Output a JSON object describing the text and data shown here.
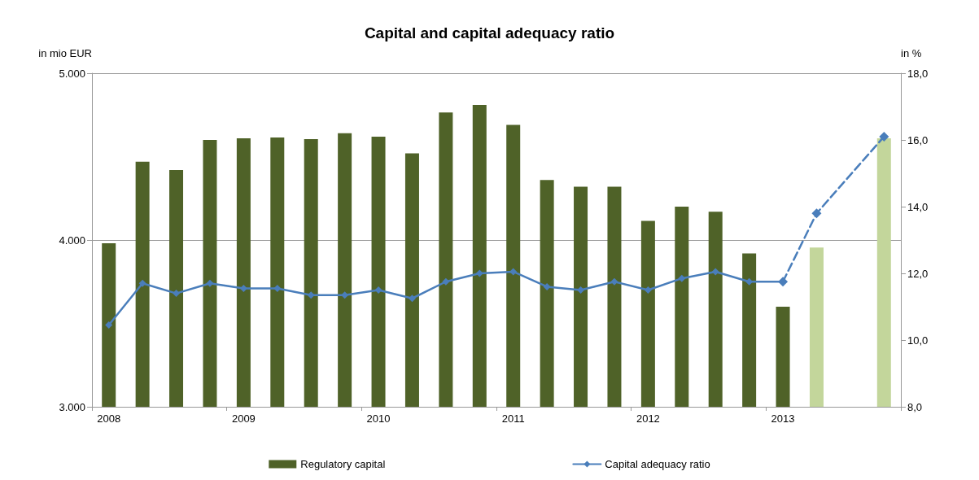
{
  "chart_data": {
    "type": "bar",
    "title": "Capital and capital adequacy ratio",
    "ylabel": "in mio EUR",
    "y2label": "in %",
    "categories": [
      "2008",
      null,
      null,
      null,
      "2009",
      null,
      null,
      null,
      "2010",
      null,
      null,
      null,
      "2011",
      null,
      null,
      null,
      "2012",
      null,
      null,
      null,
      "2013",
      null,
      null,
      null
    ],
    "series": [
      {
        "name": "Regulatory capital",
        "color": "#4f6228",
        "colors": [
          "#4f6228",
          "#4f6228",
          "#4f6228",
          "#4f6228",
          "#4f6228",
          "#4f6228",
          "#4f6228",
          "#4f6228",
          "#4f6228",
          "#4f6228",
          "#4f6228",
          "#4f6228",
          "#4f6228",
          "#4f6228",
          "#4f6228",
          "#4f6228",
          "#4f6228",
          "#4f6228",
          "#4f6228",
          "#4f6228",
          "#4f6228",
          "#c3d69b",
          "#c3d69b",
          "#c3d69b"
        ],
        "values": [
          3980,
          4470,
          4420,
          4600,
          4610,
          4615,
          4605,
          4640,
          4620,
          4520,
          4765,
          4810,
          4690,
          4360,
          4320,
          4320,
          4115,
          4200,
          4170,
          3920,
          3600,
          3955,
          null,
          4610
        ]
      },
      {
        "name": "Capital adequacy ratio",
        "type": "line",
        "axis": "y2",
        "color": "#4a7ebb",
        "marker": "diamond",
        "line_style": "solid",
        "values": [
          10.45,
          11.7,
          11.4,
          11.7,
          11.55,
          11.55,
          11.35,
          11.35,
          11.5,
          11.25,
          11.75,
          12.0,
          12.05,
          11.6,
          11.5,
          11.75,
          11.5,
          11.85,
          12.05,
          11.75,
          11.75,
          null,
          null,
          null
        ]
      },
      {
        "type": "line",
        "axis": "y2",
        "color": "#4a7ebb",
        "marker": "diamond",
        "line_style": "dashed",
        "values": [
          null,
          null,
          null,
          null,
          null,
          null,
          null,
          null,
          null,
          null,
          null,
          null,
          null,
          null,
          null,
          null,
          null,
          null,
          null,
          null,
          11.75,
          13.8,
          null,
          16.1
        ]
      }
    ],
    "ylim": [
      3000,
      5000
    ],
    "yticks": [
      {
        "value": 3000,
        "label": "3.000"
      },
      {
        "value": 4000,
        "label": "4.000"
      },
      {
        "value": 5000,
        "label": "5.000"
      }
    ],
    "y2lim": [
      8,
      18
    ],
    "y2ticks": [
      {
        "value": 8,
        "label": "8,0"
      },
      {
        "value": 10,
        "label": "10,0"
      },
      {
        "value": 12,
        "label": "12,0"
      },
      {
        "value": 14,
        "label": "14,0"
      },
      {
        "value": 16,
        "label": "16,0"
      },
      {
        "value": 18,
        "label": "18,0"
      }
    ],
    "grid": "y",
    "legend": "bottom"
  }
}
